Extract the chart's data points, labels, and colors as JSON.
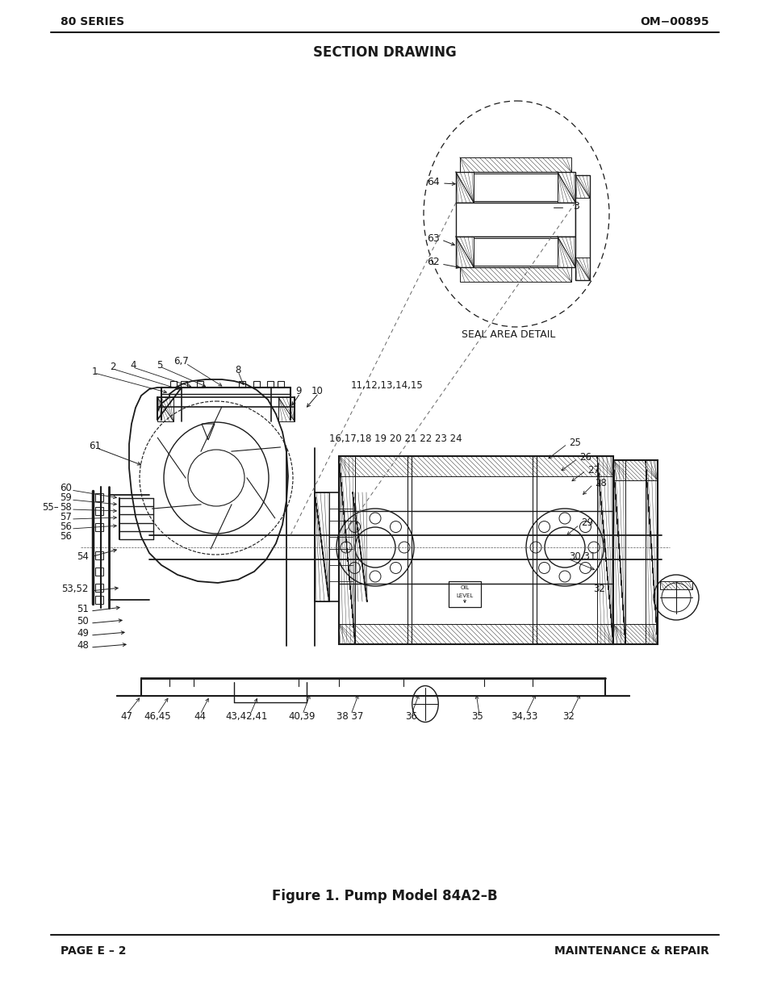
{
  "page_title": "SECTION DRAWING",
  "header_left": "80 SERIES",
  "header_right": "OM−00895",
  "footer_left": "PAGE E – 2",
  "footer_right": "MAINTENANCE & REPAIR",
  "figure_caption": "Figure 1. Pump Model 84A2–B",
  "seal_area_label": "SEAL AREA DETAIL",
  "background_color": "#ffffff",
  "line_color": "#1a1a1a",
  "text_color": "#1a1a1a",
  "gray": "#888888"
}
